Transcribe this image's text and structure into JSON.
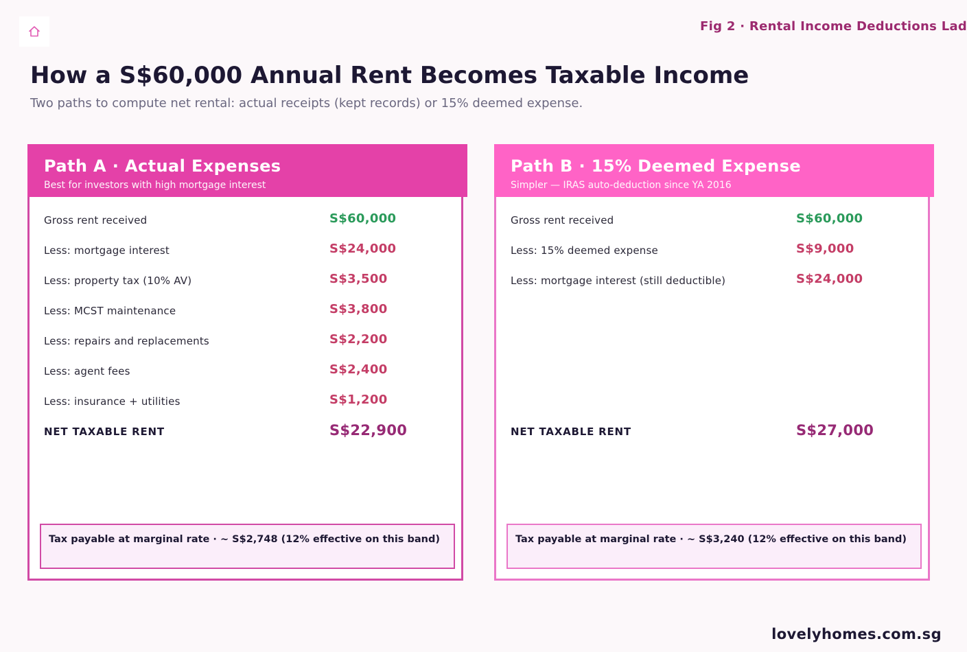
{
  "header": {
    "icon": "house-icon",
    "figure_label": "Fig 2 · Rental Income Deductions Lad",
    "title": "How a S$60,000 Annual Rent Becomes Taxable Income",
    "subtitle": "Two paths to compute net rental: actual receipts (kept records) or 15% deemed expense."
  },
  "paths": [
    {
      "title": "Path A · Actual Expenses",
      "subtitle": "Best for investors with high mortgage interest",
      "rows": [
        {
          "label": "Gross rent received",
          "value": "S$60,000"
        },
        {
          "label": "Less: mortgage interest",
          "value": "S$24,000"
        },
        {
          "label": "Less: property tax (10% AV)",
          "value": "S$3,500"
        },
        {
          "label": "Less: MCST maintenance",
          "value": "S$3,800"
        },
        {
          "label": "Less: repairs and replacements",
          "value": "S$2,200"
        },
        {
          "label": "Less: agent fees",
          "value": "S$2,400"
        },
        {
          "label": "Less: insurance + utilities",
          "value": "S$1,200"
        }
      ],
      "total": {
        "label": "NET TAXABLE RENT",
        "value": "S$22,900"
      },
      "tax_note": "Tax payable at marginal rate · ~ S$2,748 (12% effective on this band)"
    },
    {
      "title": "Path B · 15% Deemed Expense",
      "subtitle": "Simpler — IRAS auto-deduction since YA 2016",
      "rows": [
        {
          "label": "Gross rent received",
          "value": "S$60,000"
        },
        {
          "label": "Less: 15% deemed expense",
          "value": "S$9,000"
        },
        {
          "label": "Less: mortgage interest (still deductible)",
          "value": "S$24,000"
        }
      ],
      "total": {
        "label": "NET TAXABLE RENT",
        "value": "S$27,000"
      },
      "tax_note": "Tax payable at marginal rate · ~ S$3,240 (12% effective on this band)"
    }
  ],
  "colors": {
    "income": "#2a9a5a",
    "deduction": "#c43d66",
    "total": "#972a75",
    "path_a_header": "#e441a8",
    "path_b_header": "#ff63c6"
  },
  "footer": {
    "site": "lovelyhomes.com.sg"
  }
}
